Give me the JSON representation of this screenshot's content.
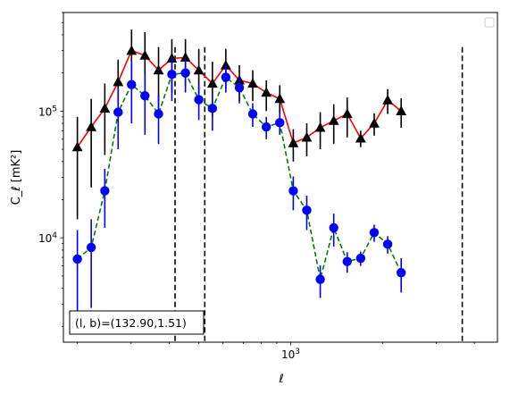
{
  "chart_data": {
    "type": "scatter",
    "xscale": "log",
    "yscale": "log",
    "xlim": [
      180,
      4760
    ],
    "ylim": [
      1500,
      600000
    ],
    "xlabel": "ℓ",
    "ylabel": "C_ℓ  [mK²]",
    "x_tick_labels": [
      {
        "value": 1000,
        "base": "10",
        "exp": "3"
      }
    ],
    "y_tick_labels": [
      {
        "value": 10000,
        "base": "10",
        "exp": "4"
      },
      {
        "value": 100000,
        "base": "10",
        "exp": "5"
      }
    ],
    "annotation": "(l, b)=(132.90,1.51)",
    "vlines": [
      418,
      523,
      3650
    ],
    "legend": {
      "position": "top-right",
      "entries": []
    },
    "series": [
      {
        "style": "triangle-solid",
        "color": "#000000",
        "line_color": "#ff0000",
        "points": [
          {
            "x": 200,
            "y": 52000,
            "lo": 14000,
            "hi": 90000
          },
          {
            "x": 222,
            "y": 75000,
            "lo": 25000,
            "hi": 125000
          },
          {
            "x": 246,
            "y": 105000,
            "lo": 45000,
            "hi": 165000
          },
          {
            "x": 272,
            "y": 170000,
            "lo": 80000,
            "hi": 255000
          },
          {
            "x": 301,
            "y": 300000,
            "lo": 140000,
            "hi": 440000
          },
          {
            "x": 333,
            "y": 275000,
            "lo": 120000,
            "hi": 420000
          },
          {
            "x": 369,
            "y": 210000,
            "lo": 100000,
            "hi": 320000
          },
          {
            "x": 408,
            "y": 260000,
            "lo": 140000,
            "hi": 370000
          },
          {
            "x": 452,
            "y": 265000,
            "lo": 160000,
            "hi": 370000
          },
          {
            "x": 500,
            "y": 210000,
            "lo": 110000,
            "hi": 310000
          },
          {
            "x": 554,
            "y": 165000,
            "lo": 90000,
            "hi": 245000
          },
          {
            "x": 613,
            "y": 230000,
            "lo": 150000,
            "hi": 310000
          },
          {
            "x": 679,
            "y": 175000,
            "lo": 120000,
            "hi": 230000
          },
          {
            "x": 751,
            "y": 165000,
            "lo": 120000,
            "hi": 210000
          },
          {
            "x": 832,
            "y": 140000,
            "lo": 100000,
            "hi": 175000
          },
          {
            "x": 921,
            "y": 125000,
            "lo": 90000,
            "hi": 160000
          },
          {
            "x": 1020,
            "y": 56000,
            "lo": 40000,
            "hi": 72000
          },
          {
            "x": 1129,
            "y": 62000,
            "lo": 44000,
            "hi": 80000
          },
          {
            "x": 1250,
            "y": 74000,
            "lo": 50000,
            "hi": 98000
          },
          {
            "x": 1384,
            "y": 84000,
            "lo": 55000,
            "hi": 113000
          },
          {
            "x": 1532,
            "y": 95000,
            "lo": 62000,
            "hi": 128000
          },
          {
            "x": 1696,
            "y": 61000,
            "lo": 52000,
            "hi": 70000
          },
          {
            "x": 1878,
            "y": 80000,
            "lo": 64000,
            "hi": 96000
          },
          {
            "x": 2079,
            "y": 122000,
            "lo": 95000,
            "hi": 149000
          },
          {
            "x": 2302,
            "y": 100000,
            "lo": 74000,
            "hi": 126000
          }
        ]
      },
      {
        "style": "circle-dashed",
        "color": "#0000ff",
        "line_color": "#008000",
        "points": [
          {
            "x": 200,
            "y": 6800,
            "lo": 2200,
            "hi": 11500
          },
          {
            "x": 222,
            "y": 8400,
            "lo": 2800,
            "hi": 14000
          },
          {
            "x": 246,
            "y": 23500,
            "lo": 12000,
            "hi": 35000
          },
          {
            "x": 272,
            "y": 98000,
            "lo": 50000,
            "hi": 150000
          },
          {
            "x": 301,
            "y": 162000,
            "lo": 80000,
            "hi": 245000
          },
          {
            "x": 333,
            "y": 132000,
            "lo": 65000,
            "hi": 200000
          },
          {
            "x": 369,
            "y": 95000,
            "lo": 55000,
            "hi": 135000
          },
          {
            "x": 408,
            "y": 195000,
            "lo": 120000,
            "hi": 270000
          },
          {
            "x": 452,
            "y": 200000,
            "lo": 140000,
            "hi": 260000
          },
          {
            "x": 500,
            "y": 123000,
            "lo": 85000,
            "hi": 160000
          },
          {
            "x": 554,
            "y": 105000,
            "lo": 70000,
            "hi": 140000
          },
          {
            "x": 613,
            "y": 185000,
            "lo": 140000,
            "hi": 230000
          },
          {
            "x": 679,
            "y": 153000,
            "lo": 115000,
            "hi": 190000
          },
          {
            "x": 751,
            "y": 95000,
            "lo": 75000,
            "hi": 115000
          },
          {
            "x": 832,
            "y": 75000,
            "lo": 60000,
            "hi": 90000
          },
          {
            "x": 921,
            "y": 81000,
            "lo": 65000,
            "hi": 97000
          },
          {
            "x": 1020,
            "y": 23500,
            "lo": 16500,
            "hi": 30500
          },
          {
            "x": 1129,
            "y": 16500,
            "lo": 11500,
            "hi": 21500
          },
          {
            "x": 1250,
            "y": 4700,
            "lo": 3350,
            "hi": 6050
          },
          {
            "x": 1384,
            "y": 12000,
            "lo": 8500,
            "hi": 15500
          },
          {
            "x": 1532,
            "y": 6500,
            "lo": 5300,
            "hi": 7700
          },
          {
            "x": 1696,
            "y": 6900,
            "lo": 6000,
            "hi": 7800
          },
          {
            "x": 1878,
            "y": 11000,
            "lo": 9300,
            "hi": 12700
          },
          {
            "x": 2079,
            "y": 8900,
            "lo": 7500,
            "hi": 10300
          },
          {
            "x": 2302,
            "y": 5300,
            "lo": 3700,
            "hi": 6900
          }
        ]
      }
    ]
  }
}
